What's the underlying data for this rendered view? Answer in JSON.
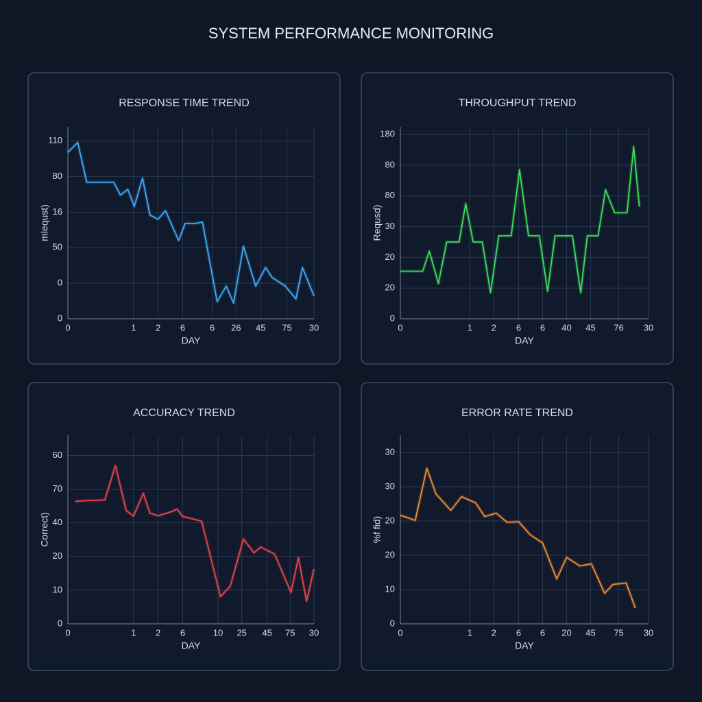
{
  "title": "SYSTEM PERFORMANCE MONITORING",
  "chart_data": [
    {
      "type": "line",
      "title": "RESPONSE TIME TREND",
      "x_label": "DAY",
      "y_label": "mlequst)",
      "xlim": [
        0,
        30
      ],
      "ylim": [
        0,
        135
      ],
      "xticks": [
        0,
        {
          "value": 8,
          "label": "1"
        },
        {
          "value": 11,
          "label": "2"
        },
        {
          "value": 14,
          "label": "6"
        },
        {
          "value": 17.6,
          "label": "6"
        },
        {
          "value": 20.5,
          "label": "26"
        },
        {
          "value": 23.5,
          "label": "45"
        },
        {
          "value": 26.7,
          "label": "75"
        },
        30
      ],
      "yticks": [
        0,
        {
          "value": 25,
          "label": "0"
        },
        50,
        {
          "value": 75,
          "label": "16"
        },
        {
          "value": 100,
          "label": "80"
        },
        {
          "value": 125,
          "label": "110"
        }
      ],
      "grid": true,
      "series": [
        {
          "name": "Response Time",
          "color": "#3fa9f5",
          "x": [
            0,
            1.2,
            2.3,
            3.8,
            5.6,
            6.4,
            7.3,
            8.1,
            9.1,
            10.0,
            11.0,
            11.9,
            13.5,
            14.3,
            15.5,
            16.4,
            18.2,
            19.3,
            20.2,
            21.4,
            22.9,
            24.1,
            24.9,
            26.5,
            27.8,
            28.6,
            30
          ],
          "values": [
            117,
            124,
            96,
            96,
            96,
            87,
            91,
            79,
            99,
            73,
            70,
            76,
            55,
            67,
            67,
            68,
            12,
            23,
            11,
            51,
            23,
            36,
            29,
            23,
            14,
            36,
            16
          ]
        }
      ]
    },
    {
      "type": "line",
      "title": "THROUGHPUT TREND",
      "x_label": "DAY",
      "y_label": "Requsd)",
      "xlim": [
        0,
        30
      ],
      "ylim": [
        0,
        125
      ],
      "xticks": [
        0,
        {
          "value": 8.4,
          "label": "1"
        },
        {
          "value": 11.3,
          "label": "2"
        },
        {
          "value": 14.3,
          "label": "6"
        },
        {
          "value": 17.2,
          "label": "6"
        },
        {
          "value": 20.1,
          "label": "40"
        },
        {
          "value": 23.0,
          "label": "45"
        },
        {
          "value": 26.4,
          "label": "76"
        },
        30
      ],
      "yticks": [
        0,
        20,
        {
          "value": 40,
          "label": "20"
        },
        {
          "value": 60,
          "label": "30"
        },
        80,
        {
          "value": 100,
          "label": "80"
        },
        {
          "value": 120,
          "label": "180"
        }
      ],
      "grid": true,
      "series": [
        {
          "name": "Throughput",
          "color": "#3ddc5a",
          "x": [
            0,
            1.1,
            2.7,
            3.5,
            4.6,
            5.6,
            7.1,
            7.9,
            8.8,
            9.9,
            10.9,
            11.9,
            13.4,
            14.4,
            15.5,
            16.8,
            17.8,
            18.7,
            20.8,
            21.8,
            22.6,
            23.9,
            24.8,
            25.9,
            27.4,
            28.2,
            28.9
          ],
          "values": [
            31,
            31,
            31,
            44,
            23,
            50,
            50,
            75,
            50,
            50,
            17,
            54,
            54,
            97,
            54,
            54,
            18,
            54,
            54,
            17,
            54,
            54,
            84,
            69,
            69,
            112,
            73
          ]
        }
      ]
    },
    {
      "type": "line",
      "title": "ACCURACY TREND",
      "x_label": "DAY",
      "y_label": "Correct)",
      "xlim": [
        0,
        30
      ],
      "ylim": [
        0,
        56
      ],
      "xticks": [
        0,
        {
          "value": 8.0,
          "label": "1"
        },
        {
          "value": 11.0,
          "label": "2"
        },
        {
          "value": 14.0,
          "label": "6"
        },
        {
          "value": 18.3,
          "label": "10"
        },
        {
          "value": 21.2,
          "label": "25"
        },
        {
          "value": 24.3,
          "label": "45"
        },
        {
          "value": 27.1,
          "label": "75"
        },
        30
      ],
      "yticks": [
        0,
        10,
        20,
        {
          "value": 30,
          "label": "40"
        },
        {
          "value": 40,
          "label": "70"
        },
        {
          "value": 50,
          "label": "60"
        }
      ],
      "grid": true,
      "series": [
        {
          "name": "Accuracy",
          "color": "#e8444a",
          "x": [
            0.9,
            2.3,
            4.5,
            5.8,
            7.1,
            8.0,
            9.2,
            10.0,
            11.0,
            12.6,
            13.3,
            14.0,
            16.3,
            18.6,
            19.8,
            21.4,
            22.7,
            23.5,
            25.2,
            27.2,
            28.1,
            29.1,
            30
          ],
          "values": [
            36.4,
            36.6,
            36.8,
            47,
            33.7,
            32,
            38.8,
            32.9,
            32.1,
            33.3,
            34.1,
            31.9,
            30.5,
            8.1,
            11.2,
            25.2,
            21.1,
            22.8,
            20.7,
            9.3,
            19.7,
            6.7,
            16.3
          ]
        }
      ]
    },
    {
      "type": "line",
      "title": "ERROR RATE TREND",
      "x_label": "DAY",
      "y_label": "%f fid)",
      "xlim": [
        0,
        30
      ],
      "ylim": [
        0,
        55
      ],
      "xticks": [
        0,
        {
          "value": 8.4,
          "label": "1"
        },
        {
          "value": 11.3,
          "label": "2"
        },
        {
          "value": 14.3,
          "label": "6"
        },
        {
          "value": 17.2,
          "label": "6"
        },
        {
          "value": 20.1,
          "label": "20"
        },
        {
          "value": 23.0,
          "label": "45"
        },
        {
          "value": 26.4,
          "label": "75"
        },
        30
      ],
      "yticks": [
        0,
        10,
        20,
        {
          "value": 30,
          "label": "20"
        },
        {
          "value": 40,
          "label": "30"
        },
        {
          "value": 50,
          "label": "30"
        }
      ],
      "grid": true,
      "series": [
        {
          "name": "Error Rate",
          "color": "#f08a30",
          "x": [
            0,
            1.8,
            3.2,
            4.3,
            6.1,
            7.4,
            9.1,
            10.2,
            11.6,
            12.9,
            14.3,
            15.7,
            17.2,
            18.9,
            20.1,
            21.7,
            23.1,
            24.7,
            25.7,
            27.3,
            28.4
          ],
          "values": [
            31.7,
            30.2,
            45.4,
            37.9,
            33.1,
            37.1,
            35.3,
            31.3,
            32.3,
            29.6,
            29.8,
            26,
            23.6,
            13.1,
            19.4,
            16.9,
            17.5,
            8.9,
            11.5,
            11.9,
            4.6
          ]
        }
      ]
    }
  ]
}
